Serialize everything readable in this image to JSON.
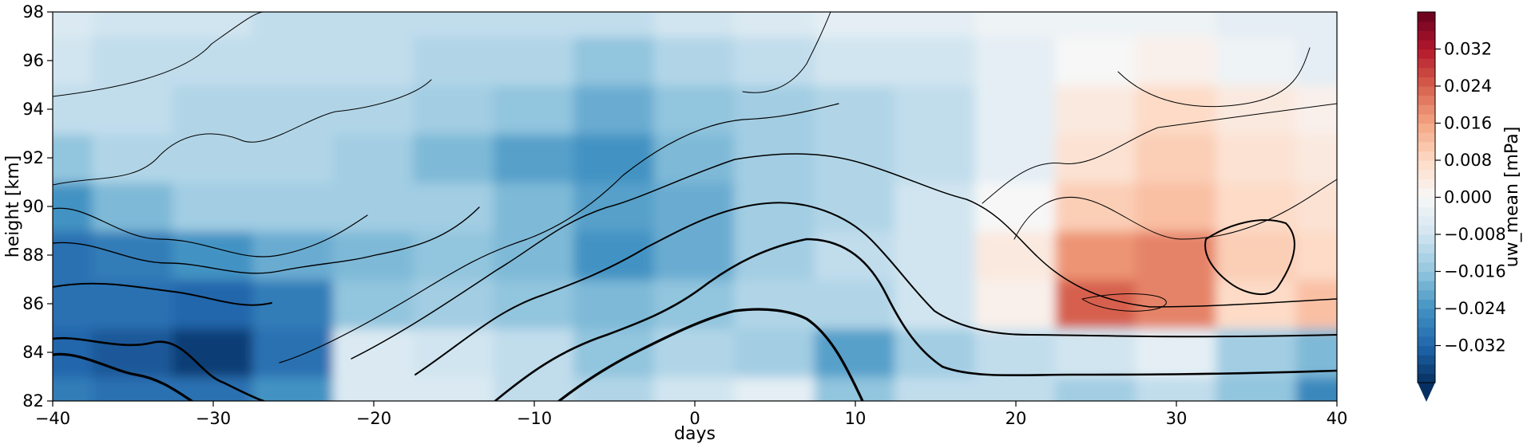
{
  "chart_data": {
    "type": "heatmap",
    "xlabel": "days",
    "ylabel": "height [km]",
    "xlim": [
      -40,
      40
    ],
    "ylim": [
      82,
      98
    ],
    "xticks": [
      -40,
      -30,
      -20,
      -10,
      0,
      10,
      20,
      30,
      40
    ],
    "xtick_labels": [
      "−40",
      "−30",
      "−20",
      "−10",
      "0",
      "10",
      "20",
      "30",
      "40"
    ],
    "yticks": [
      82,
      84,
      86,
      88,
      90,
      92,
      94,
      96,
      98
    ],
    "ytick_labels": [
      "82",
      "84",
      "86",
      "88",
      "90",
      "92",
      "94",
      "96",
      "98"
    ],
    "colorbar": {
      "label": "uw_mean [mPa]",
      "colormap": "RdBu_r",
      "vmin": -0.04,
      "vmax": 0.04,
      "extend": "min",
      "ticks": [
        -0.032,
        -0.024,
        -0.016,
        -0.008,
        0.0,
        0.008,
        0.016,
        0.024,
        0.032
      ],
      "tick_labels": [
        "−0.032",
        "−0.024",
        "−0.016",
        "−0.008",
        "0.000",
        "0.008",
        "0.016",
        "0.024",
        "0.032"
      ]
    },
    "field_days": [
      -40,
      -35,
      -30,
      -25,
      -20,
      -15,
      -10,
      -5,
      0,
      5,
      10,
      15,
      20,
      25,
      30,
      35,
      40
    ],
    "field_heights_km": [
      82,
      84,
      86,
      88,
      90,
      92,
      94,
      96,
      98
    ],
    "field_values_mPa": [
      [
        -0.028,
        -0.03,
        -0.03,
        -0.024,
        -0.006,
        -0.006,
        -0.01,
        -0.012,
        -0.008,
        -0.004,
        -0.016,
        -0.01,
        -0.01,
        -0.014,
        -0.01,
        -0.016,
        -0.026
      ],
      [
        -0.032,
        -0.034,
        -0.038,
        -0.03,
        -0.006,
        -0.008,
        -0.01,
        -0.016,
        -0.012,
        -0.014,
        -0.022,
        -0.014,
        -0.01,
        -0.008,
        -0.004,
        -0.014,
        -0.018
      ],
      [
        -0.03,
        -0.03,
        -0.032,
        -0.028,
        -0.016,
        -0.014,
        -0.016,
        -0.018,
        -0.016,
        -0.012,
        -0.012,
        -0.008,
        0.002,
        0.024,
        0.02,
        0.008,
        0.012
      ],
      [
        -0.03,
        -0.028,
        -0.024,
        -0.02,
        -0.018,
        -0.016,
        -0.018,
        -0.024,
        -0.02,
        -0.014,
        -0.01,
        -0.008,
        0.004,
        0.018,
        0.02,
        0.01,
        0.008
      ],
      [
        -0.024,
        -0.018,
        -0.014,
        -0.014,
        -0.014,
        -0.014,
        -0.018,
        -0.022,
        -0.02,
        -0.014,
        -0.012,
        -0.008,
        0.0,
        0.01,
        0.012,
        0.008,
        0.006
      ],
      [
        -0.016,
        -0.012,
        -0.012,
        -0.012,
        -0.014,
        -0.018,
        -0.022,
        -0.024,
        -0.018,
        -0.014,
        -0.012,
        -0.01,
        -0.004,
        0.006,
        0.01,
        0.006,
        0.004
      ],
      [
        -0.01,
        -0.01,
        -0.012,
        -0.012,
        -0.012,
        -0.014,
        -0.016,
        -0.02,
        -0.016,
        -0.014,
        -0.012,
        -0.01,
        -0.004,
        0.004,
        0.008,
        0.004,
        0.002
      ],
      [
        -0.008,
        -0.01,
        -0.01,
        -0.01,
        -0.01,
        -0.012,
        -0.012,
        -0.016,
        -0.012,
        -0.01,
        -0.008,
        -0.008,
        -0.004,
        0.0,
        0.002,
        -0.002,
        -0.004
      ],
      [
        -0.006,
        -0.008,
        -0.008,
        -0.01,
        -0.01,
        -0.01,
        -0.01,
        -0.01,
        -0.008,
        -0.006,
        -0.004,
        -0.004,
        -0.002,
        -0.002,
        -0.002,
        -0.004,
        -0.004
      ]
    ]
  }
}
